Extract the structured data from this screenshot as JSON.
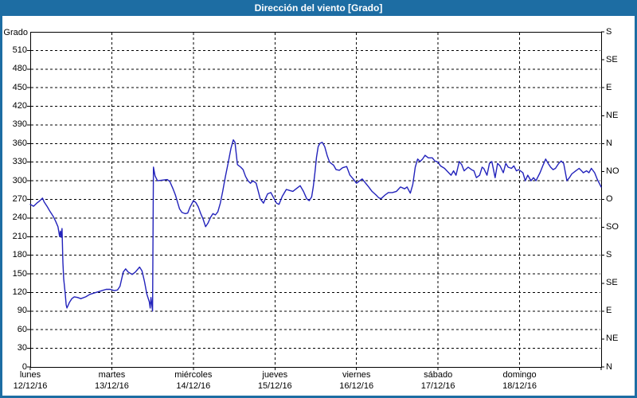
{
  "window": {
    "title": "Dirección del viento [Grado]"
  },
  "colors": {
    "titlebar": "#1d6da3",
    "window_border": "#1d6da3",
    "plot_background": "#ffffff",
    "grid": "#000000",
    "axis": "#000000",
    "series_line": "#2222bb",
    "text": "#000000",
    "title_text": "#ffffff"
  },
  "chart_data": {
    "type": "line",
    "title": "Dirección del viento [Grado]",
    "y_axis_title": "Grado",
    "y_unit": "Grado",
    "ylim": [
      0,
      540
    ],
    "y_tick_step": 30,
    "y_ticks": [
      0,
      30,
      60,
      90,
      120,
      150,
      180,
      210,
      240,
      270,
      300,
      330,
      360,
      390,
      420,
      450,
      480,
      510
    ],
    "compass_labels_from_0deg_step45": [
      "N",
      "NE",
      "E",
      "SE",
      "S",
      "SO",
      "O",
      "NO",
      "N",
      "NE",
      "E",
      "SE",
      "S"
    ],
    "x_range_days": [
      0,
      7
    ],
    "x_days": [
      {
        "name": "lunes",
        "date": "12/12/16"
      },
      {
        "name": "martes",
        "date": "13/12/16"
      },
      {
        "name": "miércoles",
        "date": "14/12/16"
      },
      {
        "name": "jueves",
        "date": "15/12/16"
      },
      {
        "name": "viernes",
        "date": "16/12/16"
      },
      {
        "name": "sábado",
        "date": "17/12/16"
      },
      {
        "name": "domingo",
        "date": "18/12/16"
      }
    ],
    "grid": "dashed",
    "legend": "none",
    "series": [
      {
        "name": "Dirección del viento",
        "points_day_deg": [
          [
            0,
            262
          ],
          [
            0.04,
            259
          ],
          [
            0.08,
            264
          ],
          [
            0.11,
            267
          ],
          [
            0.15,
            272
          ],
          [
            0.17,
            266
          ],
          [
            0.21,
            258
          ],
          [
            0.24,
            251
          ],
          [
            0.28,
            243
          ],
          [
            0.31,
            235
          ],
          [
            0.34,
            226
          ],
          [
            0.36,
            210
          ],
          [
            0.37,
            219
          ],
          [
            0.38,
            209
          ],
          [
            0.39,
            223
          ],
          [
            0.4,
            168
          ],
          [
            0.41,
            142
          ],
          [
            0.43,
            117
          ],
          [
            0.44,
            100
          ],
          [
            0.45,
            95
          ],
          [
            0.48,
            104
          ],
          [
            0.51,
            110
          ],
          [
            0.54,
            113
          ],
          [
            0.58,
            112
          ],
          [
            0.62,
            110
          ],
          [
            0.68,
            113
          ],
          [
            0.73,
            117
          ],
          [
            0.78,
            119
          ],
          [
            0.83,
            121
          ],
          [
            0.88,
            123
          ],
          [
            0.93,
            125
          ],
          [
            0.98,
            125
          ],
          [
            1.03,
            123
          ],
          [
            1.07,
            124
          ],
          [
            1.1,
            130
          ],
          [
            1.14,
            153
          ],
          [
            1.17,
            158
          ],
          [
            1.2,
            153
          ],
          [
            1.25,
            149
          ],
          [
            1.29,
            153
          ],
          [
            1.34,
            161
          ],
          [
            1.37,
            155
          ],
          [
            1.4,
            138
          ],
          [
            1.43,
            117
          ],
          [
            1.46,
            105
          ],
          [
            1.47,
            95
          ],
          [
            1.48,
            112
          ],
          [
            1.5,
            90
          ],
          [
            1.51,
            322
          ],
          [
            1.53,
            308
          ],
          [
            1.56,
            300
          ],
          [
            1.62,
            301
          ],
          [
            1.68,
            302
          ],
          [
            1.71,
            299
          ],
          [
            1.75,
            287
          ],
          [
            1.78,
            277
          ],
          [
            1.8,
            268
          ],
          [
            1.83,
            255
          ],
          [
            1.86,
            249
          ],
          [
            1.9,
            247
          ],
          [
            1.93,
            248
          ],
          [
            1.96,
            258
          ],
          [
            2,
            268
          ],
          [
            2.03,
            265
          ],
          [
            2.06,
            258
          ],
          [
            2.09,
            247
          ],
          [
            2.12,
            238
          ],
          [
            2.15,
            226
          ],
          [
            2.18,
            232
          ],
          [
            2.21,
            241
          ],
          [
            2.24,
            247
          ],
          [
            2.27,
            245
          ],
          [
            2.3,
            250
          ],
          [
            2.33,
            264
          ],
          [
            2.36,
            283
          ],
          [
            2.39,
            305
          ],
          [
            2.43,
            331
          ],
          [
            2.46,
            352
          ],
          [
            2.49,
            366
          ],
          [
            2.51,
            362
          ],
          [
            2.54,
            326
          ],
          [
            2.58,
            322
          ],
          [
            2.61,
            318
          ],
          [
            2.64,
            307
          ],
          [
            2.67,
            300
          ],
          [
            2.7,
            296
          ],
          [
            2.73,
            300
          ],
          [
            2.77,
            296
          ],
          [
            2.82,
            271
          ],
          [
            2.86,
            264
          ],
          [
            2.91,
            279
          ],
          [
            2.95,
            281
          ],
          [
            2.99,
            271
          ],
          [
            3.02,
            264
          ],
          [
            3.05,
            262
          ],
          [
            3.09,
            275
          ],
          [
            3.14,
            286
          ],
          [
            3.19,
            284
          ],
          [
            3.22,
            283
          ],
          [
            3.26,
            287
          ],
          [
            3.31,
            292
          ],
          [
            3.35,
            283
          ],
          [
            3.39,
            271
          ],
          [
            3.42,
            268
          ],
          [
            3.45,
            274
          ],
          [
            3.47,
            290
          ],
          [
            3.49,
            313
          ],
          [
            3.51,
            338
          ],
          [
            3.53,
            355
          ],
          [
            3.55,
            360
          ],
          [
            3.58,
            362
          ],
          [
            3.61,
            355
          ],
          [
            3.64,
            341
          ],
          [
            3.67,
            330
          ],
          [
            3.7,
            327
          ],
          [
            3.72,
            325
          ],
          [
            3.75,
            318
          ],
          [
            3.79,
            317
          ],
          [
            3.83,
            321
          ],
          [
            3.88,
            323
          ],
          [
            3.92,
            309
          ],
          [
            3.96,
            303
          ],
          [
            4,
            296
          ],
          [
            4.04,
            300
          ],
          [
            4.07,
            303
          ],
          [
            4.1,
            298
          ],
          [
            4.15,
            290
          ],
          [
            4.19,
            283
          ],
          [
            4.24,
            277
          ],
          [
            4.27,
            273
          ],
          [
            4.3,
            271
          ],
          [
            4.35,
            277
          ],
          [
            4.39,
            281
          ],
          [
            4.44,
            281
          ],
          [
            4.49,
            283
          ],
          [
            4.54,
            290
          ],
          [
            4.59,
            287
          ],
          [
            4.62,
            290
          ],
          [
            4.66,
            280
          ],
          [
            4.69,
            294
          ],
          [
            4.72,
            322
          ],
          [
            4.75,
            335
          ],
          [
            4.78,
            331
          ],
          [
            4.81,
            335
          ],
          [
            4.84,
            341
          ],
          [
            4.88,
            337
          ],
          [
            4.93,
            337
          ],
          [
            4.96,
            332
          ],
          [
            5,
            330
          ],
          [
            5.03,
            324
          ],
          [
            5.08,
            320
          ],
          [
            5.13,
            313
          ],
          [
            5.16,
            309
          ],
          [
            5.19,
            316
          ],
          [
            5.22,
            309
          ],
          [
            5.26,
            331
          ],
          [
            5.29,
            326
          ],
          [
            5.32,
            316
          ],
          [
            5.37,
            322
          ],
          [
            5.41,
            318
          ],
          [
            5.44,
            316
          ],
          [
            5.47,
            305
          ],
          [
            5.51,
            309
          ],
          [
            5.54,
            322
          ],
          [
            5.56,
            320
          ],
          [
            5.6,
            309
          ],
          [
            5.63,
            328
          ],
          [
            5.66,
            331
          ],
          [
            5.7,
            305
          ],
          [
            5.73,
            328
          ],
          [
            5.76,
            324
          ],
          [
            5.8,
            313
          ],
          [
            5.83,
            328
          ],
          [
            5.86,
            322
          ],
          [
            5.9,
            320
          ],
          [
            5.93,
            324
          ],
          [
            5.96,
            316
          ],
          [
            5.99,
            318
          ],
          [
            6.04,
            313
          ],
          [
            6.07,
            300
          ],
          [
            6.1,
            309
          ],
          [
            6.14,
            300
          ],
          [
            6.17,
            305
          ],
          [
            6.2,
            300
          ],
          [
            6.25,
            313
          ],
          [
            6.29,
            326
          ],
          [
            6.32,
            335
          ],
          [
            6.35,
            328
          ],
          [
            6.38,
            322
          ],
          [
            6.41,
            318
          ],
          [
            6.44,
            320
          ],
          [
            6.48,
            328
          ],
          [
            6.51,
            332
          ],
          [
            6.54,
            328
          ],
          [
            6.58,
            300
          ],
          [
            6.61,
            305
          ],
          [
            6.64,
            311
          ],
          [
            6.69,
            316
          ],
          [
            6.73,
            320
          ],
          [
            6.76,
            316
          ],
          [
            6.78,
            313
          ],
          [
            6.82,
            316
          ],
          [
            6.85,
            313
          ],
          [
            6.88,
            320
          ],
          [
            6.92,
            313
          ],
          [
            6.95,
            303
          ],
          [
            7,
            290
          ]
        ]
      }
    ]
  }
}
